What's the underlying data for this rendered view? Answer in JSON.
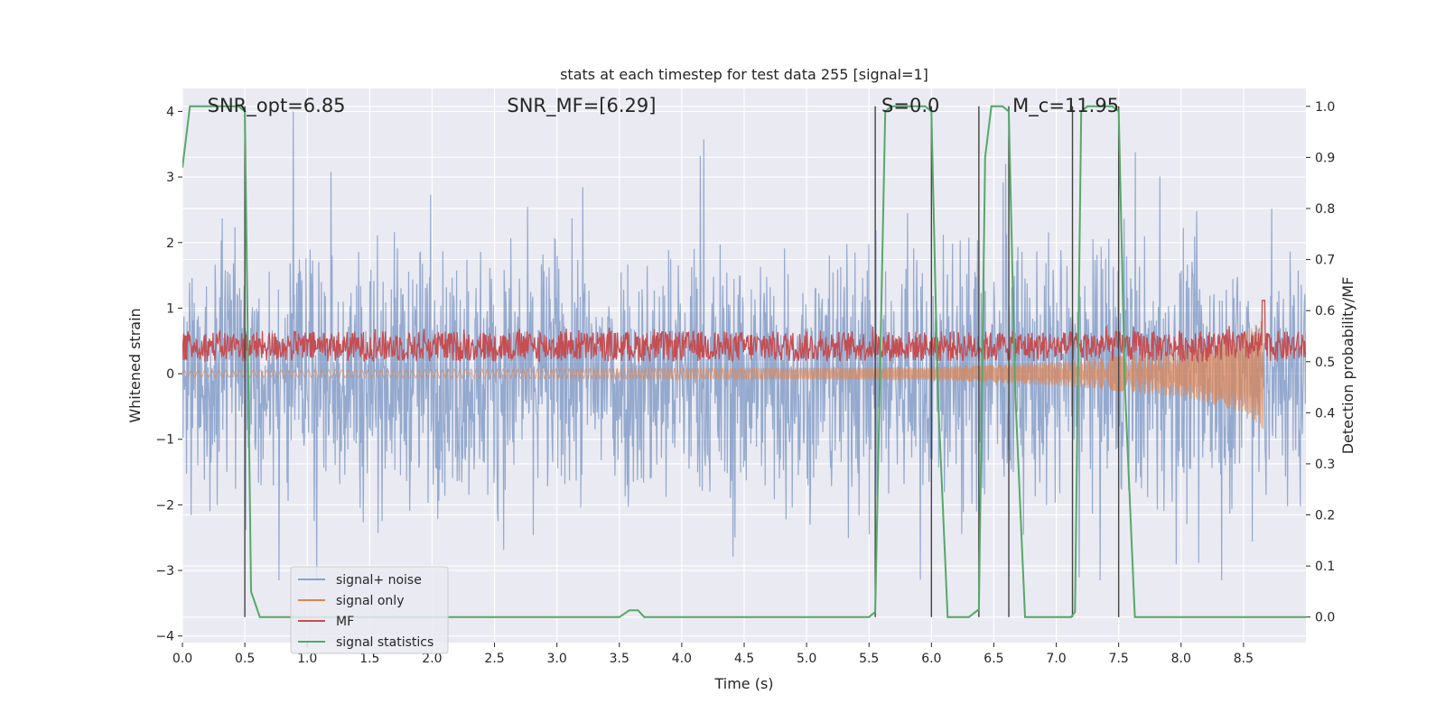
{
  "chart_data": {
    "type": "line",
    "title": "stats at each timestep for test data 255 [signal=1]",
    "xlabel": "Time (s)",
    "ylabel_left": "Whitened strain",
    "ylabel_right": "Detection probability/MF",
    "xlim": [
      0.0,
      9.0
    ],
    "ylim_left": [
      -4.1,
      4.35
    ],
    "ylim_right": [
      -0.05,
      1.035
    ],
    "x_ticks": [
      "0.0",
      "0.5",
      "1.0",
      "1.5",
      "2.0",
      "2.5",
      "3.0",
      "3.5",
      "4.0",
      "4.5",
      "5.0",
      "5.5",
      "6.0",
      "6.5",
      "7.0",
      "7.5",
      "8.0",
      "8.5"
    ],
    "y_ticks_left": [
      "4",
      "3",
      "2",
      "1",
      "0",
      "−1",
      "−2",
      "−3",
      "−4"
    ],
    "y_ticks_right": [
      "1.0",
      "0.9",
      "0.8",
      "0.7",
      "0.6",
      "0.5",
      "0.4",
      "0.3",
      "0.2",
      "0.1",
      "0.0"
    ],
    "grid": true,
    "legend_position": "lower-left",
    "annotations": [
      {
        "text": "SNR_opt=6.85",
        "x": 0.2
      },
      {
        "text": "SNR_MF=[6.29]",
        "x": 2.6
      },
      {
        "text": "S=0.0",
        "x": 5.6
      },
      {
        "text": "M_c=11.95",
        "x": 6.65
      }
    ],
    "series": [
      {
        "name": "signal+ noise",
        "color": "#4c72b0",
        "axis": "left",
        "description": "noise band roughly within ±1.4 with spikes to ±3"
      },
      {
        "name": "signal only",
        "color": "#dd8452",
        "axis": "left",
        "envelope": [
          [
            0.0,
            0.05
          ],
          [
            6.0,
            0.1
          ],
          [
            7.0,
            0.18
          ],
          [
            8.0,
            0.35
          ],
          [
            8.5,
            0.6
          ],
          [
            8.66,
            0.85
          ]
        ]
      },
      {
        "name": "MF",
        "color": "#c44e52",
        "axis": "right",
        "band": [
          0.5,
          0.56
        ],
        "peak": {
          "x": 8.66,
          "y": 0.62
        }
      },
      {
        "name": "signal statistics",
        "color": "#55a868",
        "axis": "right",
        "x": [
          0.0,
          0.06,
          0.45,
          0.5,
          0.55,
          0.62,
          3.5,
          3.58,
          3.65,
          3.7,
          5.5,
          5.55,
          5.63,
          5.68,
          5.95,
          6.0,
          6.05,
          6.13,
          6.3,
          6.38,
          6.43,
          6.48,
          6.57,
          6.62,
          6.67,
          6.75,
          7.12,
          7.15,
          7.2,
          7.25,
          7.45,
          7.5,
          7.55,
          7.63,
          9.0
        ],
        "y": [
          0.88,
          1.0,
          1.0,
          0.99,
          0.05,
          0.0,
          0.0,
          0.013,
          0.013,
          0.0,
          0.0,
          0.01,
          0.99,
          1.0,
          1.0,
          0.99,
          0.45,
          0.0,
          0.0,
          0.015,
          0.9,
          1.0,
          1.0,
          0.99,
          0.45,
          0.0,
          0.0,
          0.01,
          0.99,
          1.0,
          1.0,
          0.99,
          0.45,
          0.0,
          0.0
        ]
      },
      {
        "name": "",
        "color": "#444444",
        "type": "vlines",
        "x": [
          0.5,
          5.55,
          6.0,
          6.38,
          6.62,
          7.13,
          7.5
        ]
      }
    ],
    "legend": [
      "signal+ noise",
      "signal only",
      "MF",
      "signal statistics"
    ]
  }
}
